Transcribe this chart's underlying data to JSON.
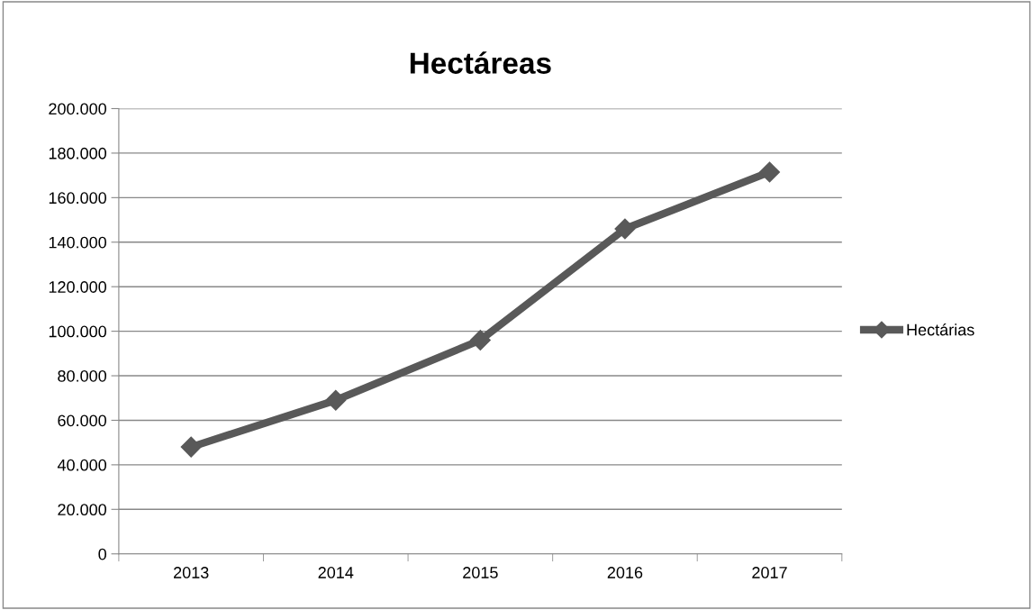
{
  "chart_data": {
    "type": "line",
    "title": "Hectáreas",
    "categories": [
      "2013",
      "2014",
      "2015",
      "2016",
      "2017"
    ],
    "series": [
      {
        "name": "Hectárias",
        "color": "#595959",
        "values": [
          48000,
          69000,
          96000,
          146000,
          171500
        ]
      }
    ],
    "ylim": [
      0,
      200000
    ],
    "yticks": [
      0,
      {
        "value": 20000,
        "label": "20.000"
      },
      {
        "value": 40000,
        "label": "40.000"
      },
      {
        "value": 60000,
        "label": "60.000"
      },
      {
        "value": 80000,
        "label": "80.000"
      },
      {
        "value": 100000,
        "label": "100.000"
      },
      {
        "value": 120000,
        "label": "120.000"
      },
      {
        "value": 140000,
        "label": "140.000"
      },
      {
        "value": 160000,
        "label": "160.000"
      },
      {
        "value": 180000,
        "label": "180.000"
      },
      {
        "value": 200000,
        "label": "200.000"
      }
    ],
    "grid": "y",
    "legend": "right",
    "marker": "diamond",
    "line_style": "solid"
  }
}
